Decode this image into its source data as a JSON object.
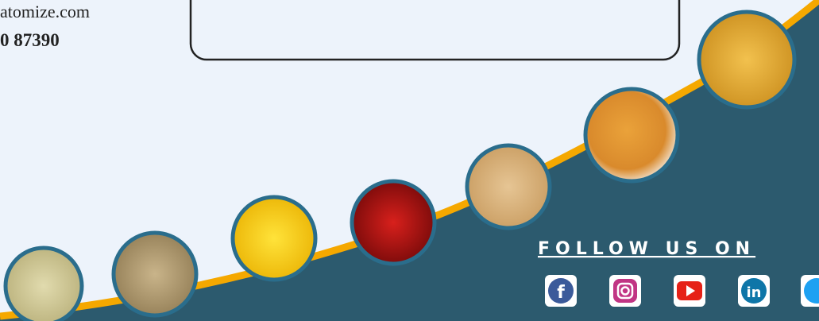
{
  "contact": {
    "email": "atomize.com",
    "phone": "0 87390"
  },
  "follow": {
    "title": "FOLLOW US ON"
  }
}
